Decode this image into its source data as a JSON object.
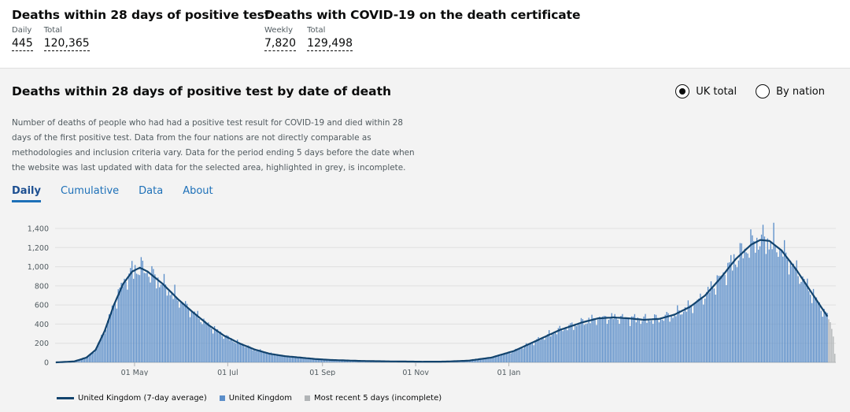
{
  "headline": {
    "left": {
      "title": "Deaths within 28 days of positive test",
      "stats": [
        {
          "label": "Daily",
          "value": "445"
        },
        {
          "label": "Total",
          "value": "120,365"
        }
      ]
    },
    "right": {
      "title": "Deaths with COVID-19 on the death certificate",
      "stats": [
        {
          "label": "Weekly",
          "value": "7,820"
        },
        {
          "label": "Total",
          "value": "129,498"
        }
      ]
    }
  },
  "card": {
    "title": "Deaths within 28 days of positive test by date of death",
    "radios": [
      {
        "label": "UK total",
        "selected": true
      },
      {
        "label": "By nation",
        "selected": false
      }
    ],
    "description": "Number of deaths of people who had had a positive test result for COVID-19 and died within 28 days of the first positive test. Data from the four nations are not directly comparable as methodologies and inclusion criteria vary. Data for the period ending 5 days before the date when the website was last updated with data for the selected area, highlighted in grey, is incomplete.",
    "tabs": [
      {
        "label": "Daily",
        "active": true
      },
      {
        "label": "Cumulative",
        "active": false
      },
      {
        "label": "Data",
        "active": false
      },
      {
        "label": "About",
        "active": false
      }
    ]
  },
  "chart_data": {
    "type": "bar",
    "y_ticks": [
      "0",
      "200",
      "400",
      "600",
      "800",
      "1,000",
      "1,200",
      "1,400"
    ],
    "ylim": [
      0,
      1400
    ],
    "x_ticks": [
      "01 May",
      "01 Jul",
      "01 Sep",
      "01 Nov",
      "01 Jan"
    ],
    "colors": {
      "bars": "#5b8ec9",
      "average": "#12436d",
      "incomplete": "#b1b4b6"
    },
    "series": [
      {
        "name": "United Kingdom (7-day average)",
        "type": "line",
        "keypoints": [
          [
            0,
            0
          ],
          [
            12,
            10
          ],
          [
            20,
            50
          ],
          [
            26,
            130
          ],
          [
            32,
            330
          ],
          [
            38,
            600
          ],
          [
            44,
            820
          ],
          [
            50,
            950
          ],
          [
            55,
            990
          ],
          [
            60,
            950
          ],
          [
            70,
            820
          ],
          [
            80,
            660
          ],
          [
            90,
            520
          ],
          [
            100,
            390
          ],
          [
            110,
            280
          ],
          [
            120,
            200
          ],
          [
            130,
            135
          ],
          [
            140,
            90
          ],
          [
            150,
            65
          ],
          [
            160,
            50
          ],
          [
            170,
            35
          ],
          [
            180,
            25
          ],
          [
            200,
            15
          ],
          [
            220,
            10
          ],
          [
            240,
            7
          ],
          [
            255,
            8
          ],
          [
            270,
            18
          ],
          [
            285,
            50
          ],
          [
            300,
            120
          ],
          [
            315,
            230
          ],
          [
            330,
            340
          ],
          [
            345,
            420
          ],
          [
            355,
            460
          ],
          [
            365,
            470
          ],
          [
            375,
            460
          ],
          [
            385,
            445
          ],
          [
            395,
            455
          ],
          [
            405,
            500
          ],
          [
            415,
            580
          ],
          [
            425,
            700
          ],
          [
            435,
            880
          ],
          [
            445,
            1080
          ],
          [
            455,
            1230
          ],
          [
            461,
            1280
          ],
          [
            467,
            1270
          ],
          [
            475,
            1170
          ],
          [
            485,
            960
          ],
          [
            495,
            720
          ],
          [
            505,
            480
          ]
        ]
      },
      {
        "name": "United Kingdom",
        "type": "bar"
      },
      {
        "name": "Most recent 5 days (incomplete)",
        "type": "bar",
        "values": [
          450,
          420,
          350,
          270,
          90
        ]
      }
    ]
  },
  "legend": {
    "avg": "United Kingdom (7-day average)",
    "daily": "United Kingdom",
    "incomplete": "Most recent 5 days (incomplete)"
  }
}
